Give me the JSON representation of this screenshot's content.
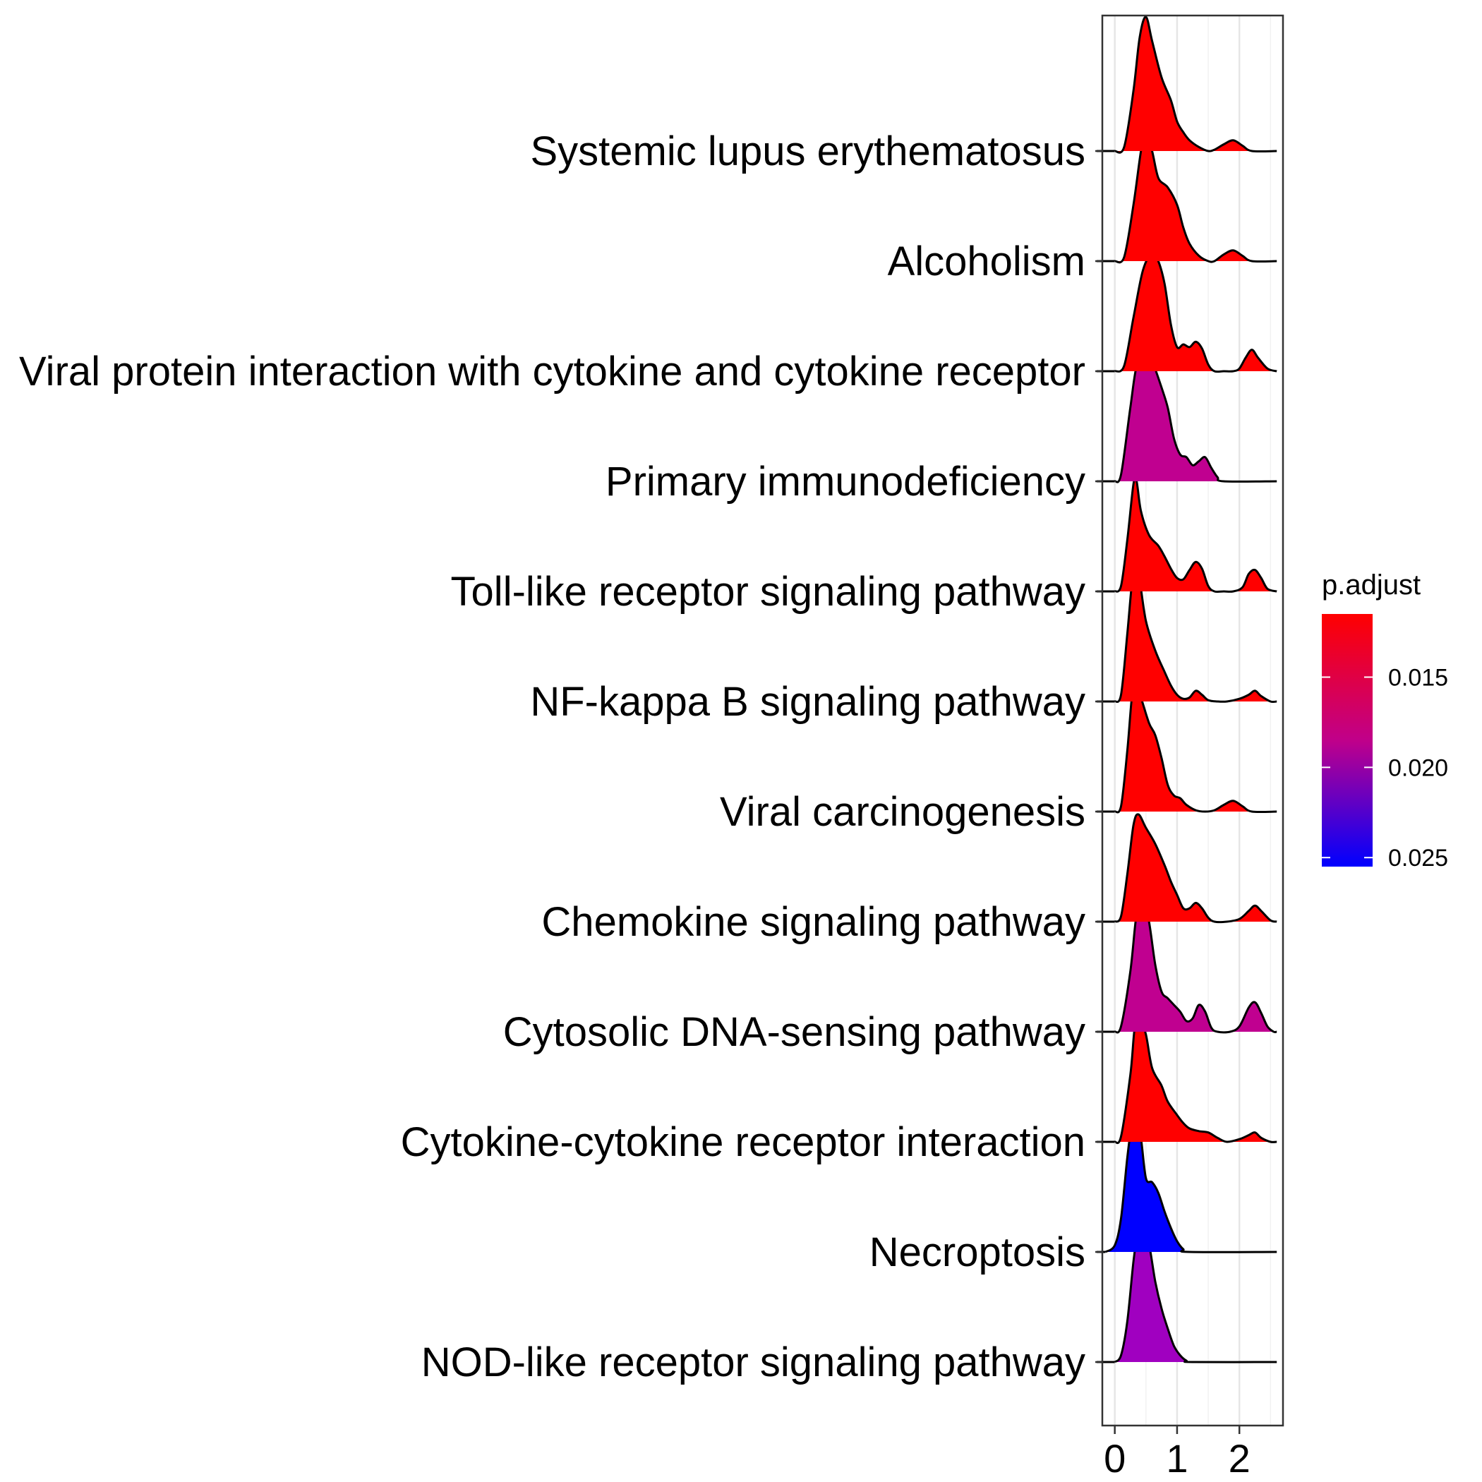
{
  "chart_data": {
    "type": "ridgeline",
    "x_ticks": [
      0,
      1,
      2
    ],
    "xlim": [
      -0.2,
      2.7
    ],
    "grid": true,
    "legend": {
      "title": "p.adjust",
      "ticks": [
        {
          "value": 0.015,
          "label": "0.015"
        },
        {
          "value": 0.02,
          "label": "0.020"
        },
        {
          "value": 0.025,
          "label": "0.025"
        }
      ],
      "range": [
        0.0115,
        0.0255
      ],
      "colors": [
        "#FF0000",
        "#0000FF"
      ],
      "placement": "right"
    },
    "series": [
      {
        "name": "Systemic lupus erythematosus",
        "p_adjust": 0.0115,
        "color": "#FF0000",
        "points": [
          [
            0.0,
            0
          ],
          [
            0.15,
            0.03
          ],
          [
            0.3,
            0.45
          ],
          [
            0.4,
            0.85
          ],
          [
            0.5,
            1.0
          ],
          [
            0.6,
            0.82
          ],
          [
            0.75,
            0.55
          ],
          [
            0.9,
            0.38
          ],
          [
            1.0,
            0.22
          ],
          [
            1.1,
            0.14
          ],
          [
            1.2,
            0.08
          ],
          [
            1.35,
            0.03
          ],
          [
            1.5,
            0.0
          ],
          [
            1.6,
            0.01
          ],
          [
            1.75,
            0.05
          ],
          [
            1.9,
            0.08
          ],
          [
            2.05,
            0.04
          ],
          [
            2.2,
            0.0
          ],
          [
            2.6,
            0.0
          ]
        ]
      },
      {
        "name": "Alcoholism",
        "p_adjust": 0.0115,
        "color": "#FF0000",
        "points": [
          [
            0.0,
            0
          ],
          [
            0.15,
            0.03
          ],
          [
            0.3,
            0.42
          ],
          [
            0.42,
            0.82
          ],
          [
            0.5,
            0.97
          ],
          [
            0.6,
            0.82
          ],
          [
            0.7,
            0.62
          ],
          [
            0.85,
            0.55
          ],
          [
            1.0,
            0.42
          ],
          [
            1.1,
            0.25
          ],
          [
            1.2,
            0.13
          ],
          [
            1.35,
            0.04
          ],
          [
            1.5,
            0.0
          ],
          [
            1.6,
            0.0
          ],
          [
            1.75,
            0.05
          ],
          [
            1.9,
            0.08
          ],
          [
            2.05,
            0.04
          ],
          [
            2.2,
            0.0
          ],
          [
            2.6,
            0.0
          ]
        ]
      },
      {
        "name": "Viral protein interaction with cytokine and cytokine receptor",
        "p_adjust": 0.0115,
        "color": "#FF0000",
        "points": [
          [
            0.0,
            0
          ],
          [
            0.15,
            0.04
          ],
          [
            0.3,
            0.4
          ],
          [
            0.45,
            0.75
          ],
          [
            0.6,
            0.88
          ],
          [
            0.7,
            0.82
          ],
          [
            0.8,
            0.65
          ],
          [
            0.9,
            0.35
          ],
          [
            1.0,
            0.18
          ],
          [
            1.1,
            0.2
          ],
          [
            1.2,
            0.18
          ],
          [
            1.3,
            0.22
          ],
          [
            1.4,
            0.17
          ],
          [
            1.5,
            0.05
          ],
          [
            1.6,
            0.0
          ],
          [
            1.75,
            0.0
          ],
          [
            1.9,
            0.0
          ],
          [
            2.0,
            0.02
          ],
          [
            2.1,
            0.1
          ],
          [
            2.2,
            0.16
          ],
          [
            2.3,
            0.1
          ],
          [
            2.45,
            0.02
          ],
          [
            2.6,
            0.0
          ]
        ]
      },
      {
        "name": "Primary immunodeficiency",
        "p_adjust": 0.018,
        "color": "#C00090",
        "points": [
          [
            0.0,
            0
          ],
          [
            0.1,
            0.05
          ],
          [
            0.25,
            0.55
          ],
          [
            0.35,
            0.86
          ],
          [
            0.5,
            1.0
          ],
          [
            0.6,
            0.9
          ],
          [
            0.75,
            0.7
          ],
          [
            0.85,
            0.55
          ],
          [
            0.95,
            0.32
          ],
          [
            1.05,
            0.2
          ],
          [
            1.15,
            0.18
          ],
          [
            1.25,
            0.12
          ],
          [
            1.35,
            0.15
          ],
          [
            1.45,
            0.18
          ],
          [
            1.55,
            0.1
          ],
          [
            1.65,
            0.03
          ],
          [
            1.75,
            0.0
          ],
          [
            2.6,
            0.0
          ]
        ]
      },
      {
        "name": "Toll-like receptor signaling pathway",
        "p_adjust": 0.0115,
        "color": "#FF0000",
        "points": [
          [
            0.0,
            0
          ],
          [
            0.1,
            0.04
          ],
          [
            0.2,
            0.38
          ],
          [
            0.3,
            0.8
          ],
          [
            0.35,
            0.82
          ],
          [
            0.42,
            0.6
          ],
          [
            0.55,
            0.42
          ],
          [
            0.7,
            0.34
          ],
          [
            0.8,
            0.26
          ],
          [
            0.9,
            0.17
          ],
          [
            1.0,
            0.1
          ],
          [
            1.1,
            0.09
          ],
          [
            1.2,
            0.16
          ],
          [
            1.3,
            0.22
          ],
          [
            1.4,
            0.17
          ],
          [
            1.5,
            0.04
          ],
          [
            1.6,
            0.0
          ],
          [
            1.75,
            0.0
          ],
          [
            1.9,
            0.0
          ],
          [
            2.05,
            0.03
          ],
          [
            2.15,
            0.13
          ],
          [
            2.25,
            0.16
          ],
          [
            2.35,
            0.1
          ],
          [
            2.45,
            0.02
          ],
          [
            2.6,
            0.0
          ]
        ]
      },
      {
        "name": "NF-kappa B signaling pathway",
        "p_adjust": 0.0115,
        "color": "#FF0000",
        "points": [
          [
            0.0,
            0
          ],
          [
            0.1,
            0.05
          ],
          [
            0.2,
            0.5
          ],
          [
            0.28,
            0.9
          ],
          [
            0.34,
            0.97
          ],
          [
            0.4,
            0.9
          ],
          [
            0.5,
            0.6
          ],
          [
            0.65,
            0.38
          ],
          [
            0.8,
            0.22
          ],
          [
            0.9,
            0.12
          ],
          [
            1.0,
            0.05
          ],
          [
            1.1,
            0.02
          ],
          [
            1.2,
            0.03
          ],
          [
            1.3,
            0.08
          ],
          [
            1.4,
            0.05
          ],
          [
            1.5,
            0.01
          ],
          [
            1.65,
            0.0
          ],
          [
            1.8,
            0.0
          ],
          [
            2.0,
            0.02
          ],
          [
            2.15,
            0.05
          ],
          [
            2.25,
            0.08
          ],
          [
            2.35,
            0.04
          ],
          [
            2.5,
            0.0
          ],
          [
            2.6,
            0.0
          ]
        ]
      },
      {
        "name": "Viral carcinogenesis",
        "p_adjust": 0.0115,
        "color": "#FF0000",
        "points": [
          [
            0.0,
            0
          ],
          [
            0.1,
            0.04
          ],
          [
            0.2,
            0.45
          ],
          [
            0.28,
            0.88
          ],
          [
            0.34,
            0.94
          ],
          [
            0.42,
            0.85
          ],
          [
            0.55,
            0.66
          ],
          [
            0.65,
            0.57
          ],
          [
            0.75,
            0.4
          ],
          [
            0.85,
            0.2
          ],
          [
            0.95,
            0.12
          ],
          [
            1.05,
            0.1
          ],
          [
            1.15,
            0.05
          ],
          [
            1.3,
            0.01
          ],
          [
            1.45,
            0.0
          ],
          [
            1.6,
            0.01
          ],
          [
            1.75,
            0.05
          ],
          [
            1.9,
            0.08
          ],
          [
            2.05,
            0.04
          ],
          [
            2.2,
            0.0
          ],
          [
            2.6,
            0.0
          ]
        ]
      },
      {
        "name": "Chemokine signaling pathway",
        "p_adjust": 0.0115,
        "color": "#FF0000",
        "points": [
          [
            0.0,
            0
          ],
          [
            0.1,
            0.04
          ],
          [
            0.2,
            0.35
          ],
          [
            0.3,
            0.72
          ],
          [
            0.38,
            0.8
          ],
          [
            0.5,
            0.7
          ],
          [
            0.65,
            0.58
          ],
          [
            0.8,
            0.42
          ],
          [
            0.9,
            0.3
          ],
          [
            1.0,
            0.2
          ],
          [
            1.1,
            0.1
          ],
          [
            1.2,
            0.1
          ],
          [
            1.3,
            0.14
          ],
          [
            1.4,
            0.1
          ],
          [
            1.5,
            0.03
          ],
          [
            1.6,
            0.0
          ],
          [
            1.8,
            0.0
          ],
          [
            2.0,
            0.02
          ],
          [
            2.15,
            0.08
          ],
          [
            2.25,
            0.12
          ],
          [
            2.35,
            0.08
          ],
          [
            2.5,
            0.01
          ],
          [
            2.6,
            0.0
          ]
        ]
      },
      {
        "name": "Cytosolic DNA-sensing pathway",
        "p_adjust": 0.0175,
        "color": "#C00090",
        "points": [
          [
            0.0,
            0
          ],
          [
            0.1,
            0.04
          ],
          [
            0.25,
            0.45
          ],
          [
            0.35,
            0.88
          ],
          [
            0.45,
            1.0
          ],
          [
            0.55,
            0.82
          ],
          [
            0.65,
            0.5
          ],
          [
            0.75,
            0.3
          ],
          [
            0.85,
            0.25
          ],
          [
            0.95,
            0.2
          ],
          [
            1.05,
            0.15
          ],
          [
            1.15,
            0.08
          ],
          [
            1.25,
            0.1
          ],
          [
            1.35,
            0.2
          ],
          [
            1.45,
            0.15
          ],
          [
            1.55,
            0.03
          ],
          [
            1.65,
            0.0
          ],
          [
            1.85,
            0.0
          ],
          [
            2.0,
            0.04
          ],
          [
            2.15,
            0.18
          ],
          [
            2.25,
            0.22
          ],
          [
            2.35,
            0.14
          ],
          [
            2.45,
            0.04
          ],
          [
            2.55,
            0.0
          ],
          [
            2.6,
            0.0
          ]
        ]
      },
      {
        "name": "Cytokine-cytokine receptor interaction",
        "p_adjust": 0.0115,
        "color": "#FF0000",
        "points": [
          [
            0.0,
            0
          ],
          [
            0.1,
            0.04
          ],
          [
            0.25,
            0.5
          ],
          [
            0.32,
            0.85
          ],
          [
            0.4,
            0.92
          ],
          [
            0.5,
            0.8
          ],
          [
            0.6,
            0.55
          ],
          [
            0.75,
            0.42
          ],
          [
            0.85,
            0.3
          ],
          [
            1.0,
            0.2
          ],
          [
            1.1,
            0.14
          ],
          [
            1.2,
            0.1
          ],
          [
            1.35,
            0.08
          ],
          [
            1.5,
            0.07
          ],
          [
            1.65,
            0.03
          ],
          [
            1.8,
            0.0
          ],
          [
            2.0,
            0.02
          ],
          [
            2.15,
            0.05
          ],
          [
            2.25,
            0.07
          ],
          [
            2.35,
            0.03
          ],
          [
            2.5,
            0.0
          ],
          [
            2.6,
            0.0
          ]
        ]
      },
      {
        "name": "Necroptosis",
        "p_adjust": 0.0255,
        "color": "#0000FF",
        "points": [
          [
            -0.15,
            0
          ],
          [
            0.0,
            0.05
          ],
          [
            0.1,
            0.25
          ],
          [
            0.2,
            0.7
          ],
          [
            0.28,
            0.98
          ],
          [
            0.34,
            1.04
          ],
          [
            0.42,
            0.85
          ],
          [
            0.5,
            0.55
          ],
          [
            0.6,
            0.52
          ],
          [
            0.7,
            0.44
          ],
          [
            0.8,
            0.3
          ],
          [
            0.9,
            0.18
          ],
          [
            1.0,
            0.08
          ],
          [
            1.1,
            0.02
          ],
          [
            1.2,
            0.0
          ],
          [
            2.6,
            0.0
          ]
        ]
      },
      {
        "name": "NOD-like receptor signaling pathway",
        "p_adjust": 0.0195,
        "color": "#A000C0",
        "points": [
          [
            0.0,
            0
          ],
          [
            0.1,
            0.05
          ],
          [
            0.2,
            0.3
          ],
          [
            0.3,
            0.75
          ],
          [
            0.38,
            1.0
          ],
          [
            0.45,
            1.04
          ],
          [
            0.55,
            0.88
          ],
          [
            0.65,
            0.6
          ],
          [
            0.75,
            0.4
          ],
          [
            0.85,
            0.25
          ],
          [
            0.95,
            0.12
          ],
          [
            1.05,
            0.05
          ],
          [
            1.15,
            0.01
          ],
          [
            1.25,
            0.0
          ],
          [
            2.6,
            0.0
          ]
        ]
      }
    ]
  }
}
